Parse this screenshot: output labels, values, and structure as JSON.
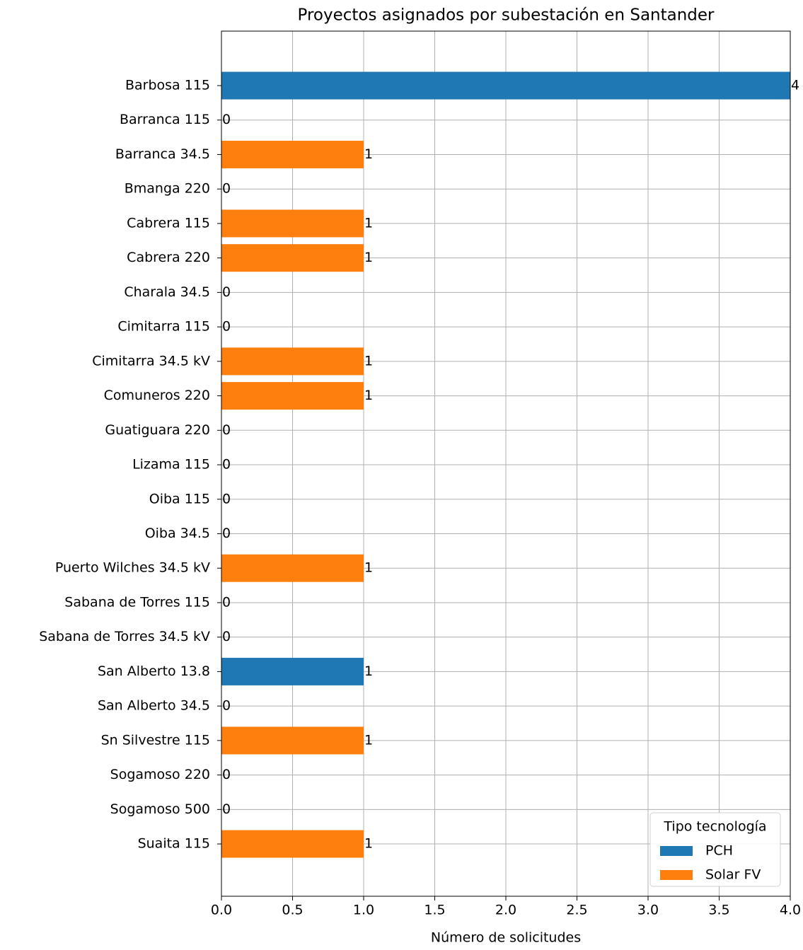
{
  "chart_data": {
    "type": "barh_stacked",
    "title": "Proyectos asignados por subestación en Santander",
    "x_label": "Número de solicitudes",
    "categories": [
      "Barbosa 115",
      "Barranca 115",
      "Barranca 34.5",
      "Bmanga 220",
      "Cabrera 115",
      "Cabrera 220",
      "Charala 34.5",
      "Cimitarra 115",
      "Cimitarra 34.5 kV",
      "Comuneros 220",
      "Guatiguara 220",
      "Lizama 115",
      "Oiba 115",
      "Oiba 34.5",
      "Puerto Wilches 34.5 kV",
      "Sabana de Torres 115",
      "Sabana de Torres 34.5 kV",
      "San Alberto 13.8",
      "San Alberto 34.5",
      "Sn Silvestre 115",
      "Sogamoso 220",
      "Sogamoso 500",
      "Suaita 115"
    ],
    "series": [
      {
        "name": "PCH",
        "color": "#1f77b4",
        "values": [
          4,
          0,
          0,
          0,
          0,
          0,
          0,
          0,
          0,
          0,
          0,
          0,
          0,
          0,
          0,
          0,
          0,
          1,
          0,
          0,
          0,
          0,
          0
        ]
      },
      {
        "name": "Solar FV",
        "color": "#ff7f0e",
        "values": [
          0,
          0,
          1,
          0,
          1,
          1,
          0,
          0,
          1,
          1,
          0,
          0,
          0,
          0,
          1,
          0,
          0,
          0,
          0,
          1,
          0,
          0,
          1
        ]
      }
    ],
    "bar_labels": [
      4,
      0,
      1,
      0,
      1,
      1,
      0,
      0,
      1,
      1,
      0,
      0,
      0,
      0,
      1,
      0,
      0,
      1,
      0,
      1,
      0,
      0,
      1
    ],
    "xlim": [
      0,
      4
    ],
    "xticks": [
      {
        "value": 0,
        "label": "0.0"
      },
      0.5,
      {
        "value": 1,
        "label": "1.0"
      },
      1.5,
      {
        "value": 2,
        "label": "2.0"
      },
      2.5,
      {
        "value": 3,
        "label": "3.0"
      },
      3.5,
      {
        "value": 4,
        "label": "4.0"
      }
    ],
    "grid": true,
    "legend_title": "Tipo tecnología",
    "legend_position": "lower right"
  }
}
